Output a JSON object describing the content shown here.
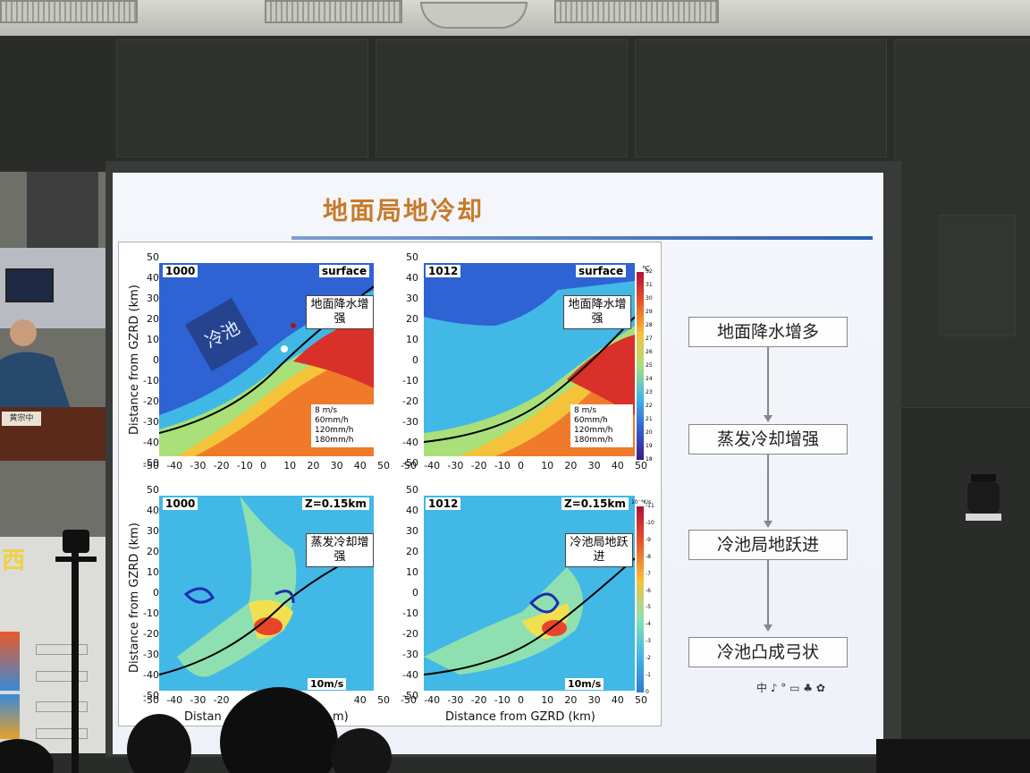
{
  "slide": {
    "title": "地面局地冷却",
    "figure": {
      "ylabel": "Distance from GZRD (km)",
      "xlabel": "Distance from GZRD (km)",
      "xlabel_partial": "Distan",
      "xlabel_tail": "m)",
      "yticks": [
        "50",
        "40",
        "30",
        "20",
        "10",
        "0",
        "-10",
        "-20",
        "-30",
        "-40",
        "-50"
      ],
      "xticks": [
        "-50",
        "-40",
        "-30",
        "-20",
        "-10",
        "0",
        "10",
        "20",
        "30",
        "40",
        "50"
      ],
      "xticks_bottom_left": [
        "-50",
        "-40",
        "-30",
        "-20"
      ],
      "xticks_bottom_left_tail": [
        "40",
        "50"
      ],
      "panels": [
        {
          "time": "1000",
          "level": "surface",
          "callout": "地面降水增强",
          "region_label": "冷池",
          "legend": [
            "8 m/s",
            "60mm/h",
            "120mm/h",
            "180mm/h"
          ]
        },
        {
          "time": "1012",
          "level": "surface",
          "callout": "地面降水增强",
          "legend": [
            "8 m/s",
            "60mm/h",
            "120mm/h",
            "180mm/h"
          ]
        },
        {
          "time": "1000",
          "level": "Z=0.15km",
          "callout": "蒸发冷却增强",
          "wind": "10m/s"
        },
        {
          "time": "1012",
          "level": "Z=0.15km",
          "callout": "冷池局地跃进",
          "wind": "10m/s"
        }
      ],
      "colorbar_top": {
        "unit": "℃",
        "labels": [
          "32",
          "31",
          "30",
          "29",
          "28",
          "27",
          "26",
          "25",
          "24",
          "23",
          "22",
          "21",
          "20",
          "19",
          "18"
        ]
      },
      "colorbar_bottom": {
        "unit": "10⁻⁴K/s",
        "labels": [
          "-11",
          "-10",
          "-9",
          "-8",
          "-7",
          "-6",
          "-5",
          "-4",
          "-3",
          "-2",
          "-1",
          "0"
        ]
      }
    },
    "flow": [
      "地面降水增多",
      "蒸发冷却增强",
      "冷池局地跃进",
      "冷池凸成弓状"
    ],
    "toolbar": "中 ♪ ° ▭ ♣ ✿"
  },
  "left_screen": {
    "name_tag": "黄宗中",
    "partial_text": "西"
  },
  "colors": {
    "title": "#c77a2a",
    "cold": "#2b5bd1",
    "warm": "#e8442a",
    "cyan": "#42c8e8"
  }
}
